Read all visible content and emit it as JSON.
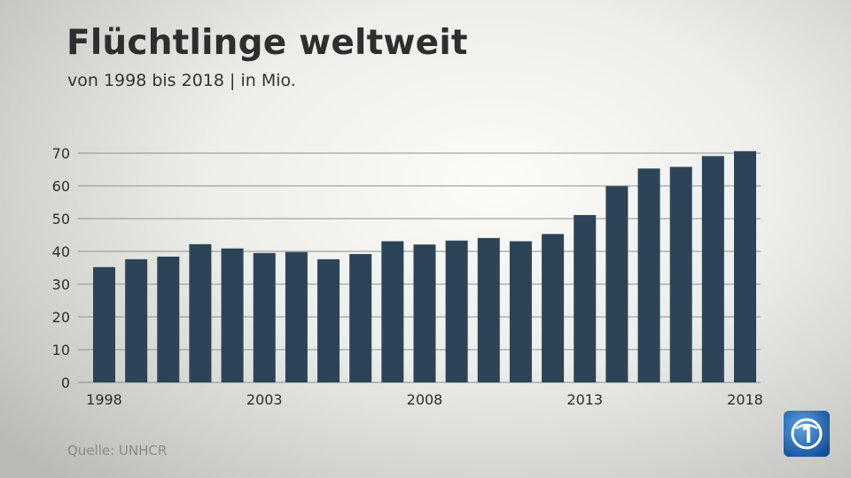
{
  "title": "Flüchtlinge weltweit",
  "subtitle": "von 1998 bis 2018 | in Mio.",
  "source": "Quelle: UNHCR",
  "logo_icon": "ard-one-logo-icon",
  "colors": {
    "bar": "#2b4457",
    "grid": "#8f8f8c",
    "text": "#2e2e2e",
    "logo": "#1c5ea8"
  },
  "chart_data": {
    "type": "bar",
    "title": "Flüchtlinge weltweit",
    "subtitle": "von 1998 bis 2018 | in Mio.",
    "xlabel": "",
    "ylabel": "",
    "x": [
      1998,
      1999,
      2000,
      2001,
      2002,
      2003,
      2004,
      2005,
      2006,
      2007,
      2008,
      2009,
      2010,
      2011,
      2012,
      2013,
      2014,
      2015,
      2016,
      2017,
      2018
    ],
    "values": [
      35.2,
      37.6,
      38.4,
      42.2,
      40.9,
      39.5,
      39.8,
      37.6,
      39.2,
      43.1,
      42.1,
      43.3,
      44.1,
      43.1,
      45.3,
      51.1,
      59.9,
      65.3,
      65.8,
      69.1,
      70.6
    ],
    "xticks": [
      "1998",
      "2003",
      "2008",
      "2013",
      "2018"
    ],
    "yticks": [
      "0",
      "10",
      "20",
      "30",
      "40",
      "50",
      "60",
      "70"
    ],
    "ylim": [
      0,
      70
    ],
    "grid": true,
    "legend": "none"
  }
}
